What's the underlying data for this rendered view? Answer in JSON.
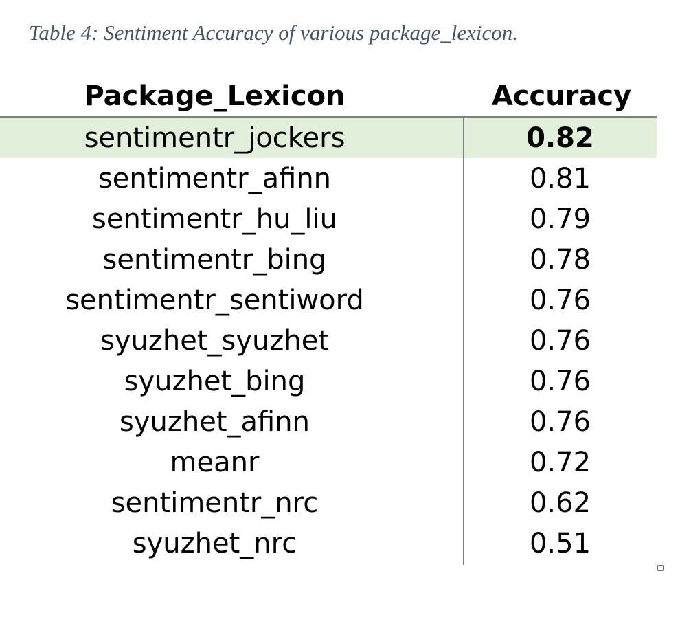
{
  "caption": "Table 4: Sentiment Accuracy of various package_lexicon.",
  "table": {
    "headers": {
      "name": "Package_Lexicon",
      "accuracy": "Accuracy"
    },
    "rows": [
      {
        "name": "sentimentr_jockers",
        "accuracy": "0.82",
        "highlighted": true
      },
      {
        "name": "sentimentr_afinn",
        "accuracy": "0.81"
      },
      {
        "name": "sentimentr_hu_liu",
        "accuracy": "0.79"
      },
      {
        "name": "sentimentr_bing",
        "accuracy": "0.78"
      },
      {
        "name": "sentimentr_sentiword",
        "accuracy": "0.76"
      },
      {
        "name": "syuzhet_syuzhet",
        "accuracy": "0.76"
      },
      {
        "name": "syuzhet_bing",
        "accuracy": "0.76"
      },
      {
        "name": "syuzhet_afinn",
        "accuracy": "0.76"
      },
      {
        "name": "meanr",
        "accuracy": "0.72"
      },
      {
        "name": "sentimentr_nrc",
        "accuracy": "0.62"
      },
      {
        "name": "syuzhet_nrc",
        "accuracy": "0.51"
      }
    ],
    "highlight_color": "#e2efda"
  }
}
